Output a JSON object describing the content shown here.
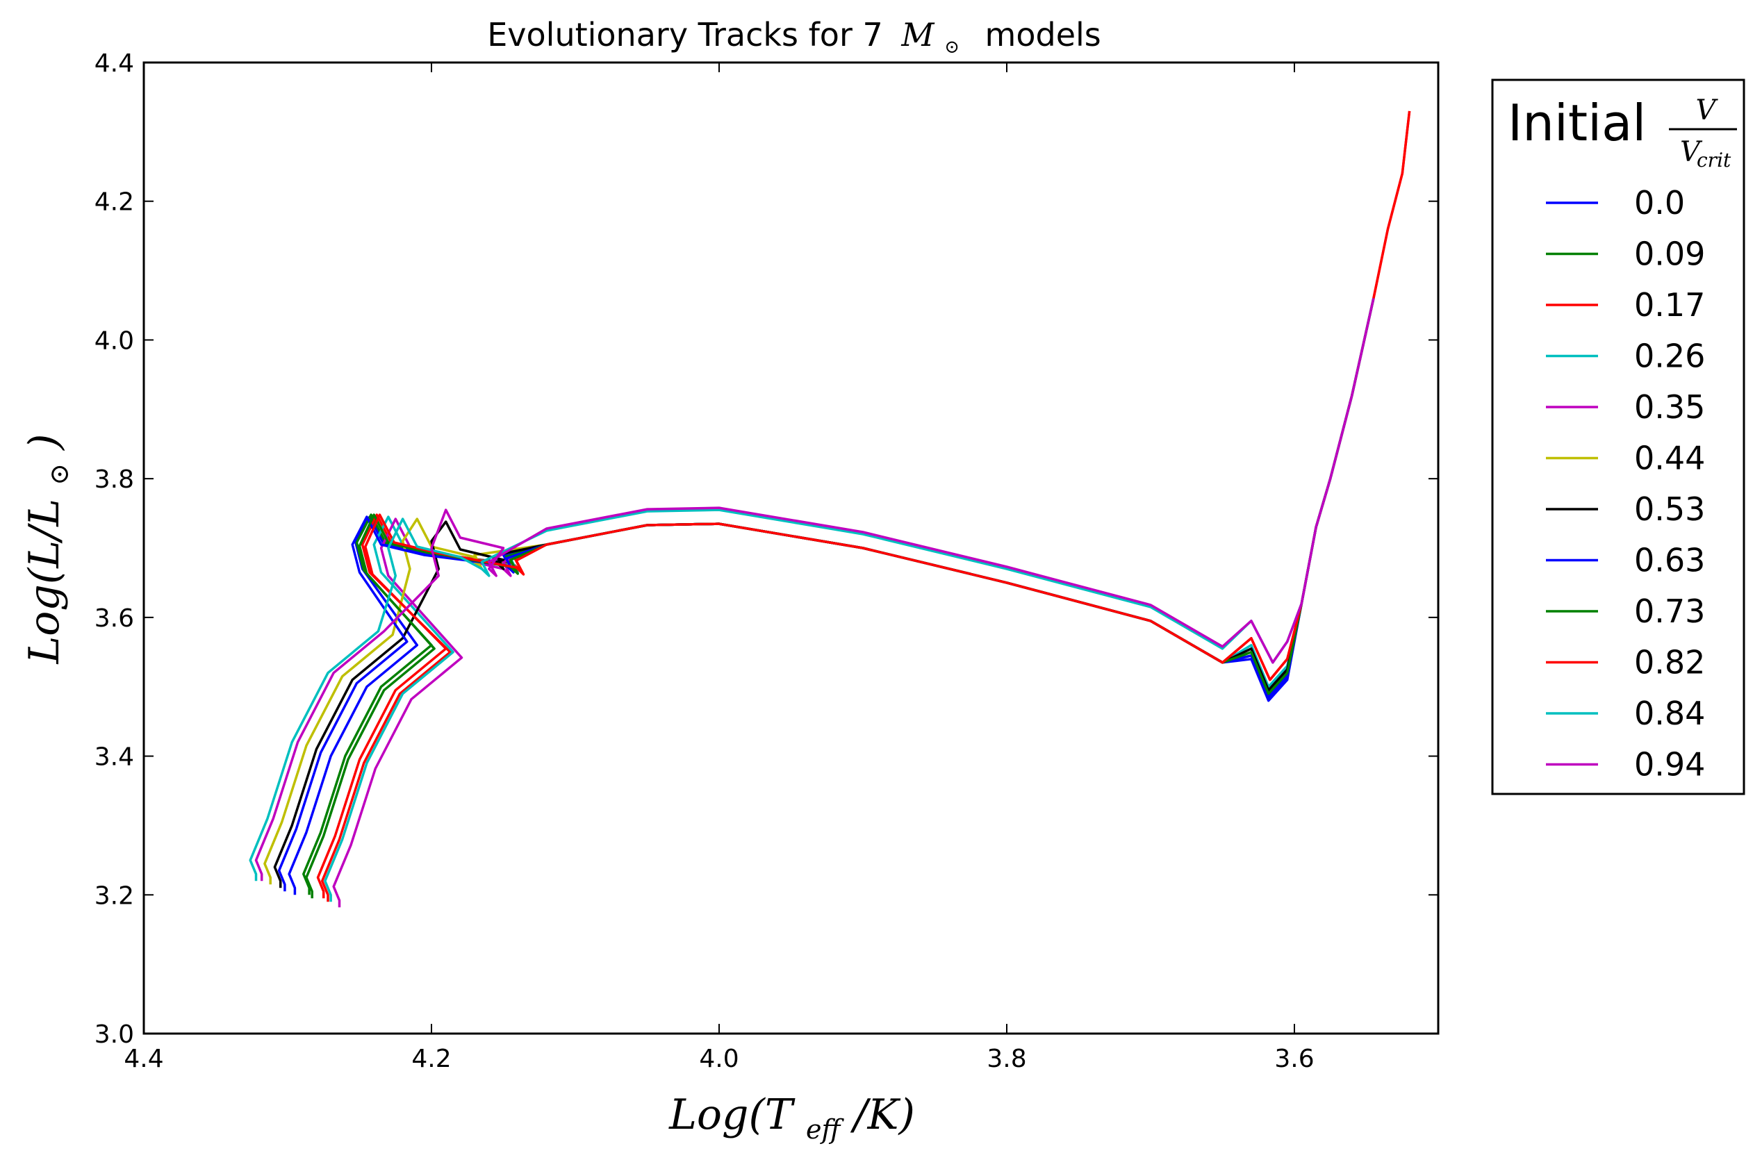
{
  "chart_data": {
    "type": "line",
    "title_prefix": "Evolutionary Tracks for 7",
    "title_symbol": "M",
    "title_symbol_sub": "⊙",
    "title_suffix": "models",
    "xlabel": "Log(T",
    "xlabel_sub": "eff",
    "xlabel_end": "/K)",
    "ylabel": "Log(L/L",
    "ylabel_sub": "⊙",
    "ylabel_end": ")",
    "xlim": [
      4.4,
      3.5
    ],
    "ylim": [
      3.0,
      4.4
    ],
    "x_inverted": true,
    "xticks": [
      4.4,
      4.2,
      4.0,
      3.8,
      3.6
    ],
    "xtick_labels": [
      "4.4",
      "4.2",
      "4.0",
      "3.8",
      "3.6"
    ],
    "yticks": [
      3.0,
      3.2,
      3.4,
      3.6,
      3.8,
      4.0,
      4.2,
      4.4
    ],
    "ytick_labels": [
      "3.0",
      "3.2",
      "3.4",
      "3.6",
      "3.8",
      "4.0",
      "4.2",
      "4.4"
    ],
    "grid": false,
    "legend_position": "outside-right",
    "legend_title_text": "Initial",
    "legend_title_num": "V",
    "legend_title_den": "V",
    "legend_title_den_sub": "crit",
    "series": [
      {
        "name": "0.0",
        "color": "#0000ff",
        "zams": [
          4.295,
          3.2
        ],
        "x_blue": 4.243,
        "y_blue": 3.745,
        "y_hook": 3.67,
        "x_hook": 4.145,
        "y_max": 3.735,
        "x_rgb": 3.618,
        "y_rgb": 3.48
      },
      {
        "name": "0.09",
        "color": "#008000",
        "zams": [
          4.283,
          3.195
        ],
        "x_blue": 4.242,
        "y_blue": 3.748,
        "y_hook": 3.668,
        "x_hook": 4.143,
        "y_max": 3.735,
        "x_rgb": 3.618,
        "y_rgb": 3.485
      },
      {
        "name": "0.17",
        "color": "#ff0000",
        "zams": [
          4.272,
          3.19
        ],
        "x_blue": 4.238,
        "y_blue": 3.748,
        "y_hook": 3.665,
        "x_hook": 4.137,
        "y_max": 3.735,
        "x_rgb": 3.617,
        "y_rgb": 3.51
      },
      {
        "name": "0.26",
        "color": "#00bfbf",
        "zams": [
          4.27,
          3.19
        ],
        "x_blue": 4.23,
        "y_blue": 3.745,
        "y_hook": 3.665,
        "x_hook": 4.14,
        "y_max": 3.735,
        "x_rgb": 3.618,
        "y_rgb": 3.5
      },
      {
        "name": "0.35",
        "color": "#bf00bf",
        "zams": [
          4.264,
          3.182
        ],
        "x_blue": 4.225,
        "y_blue": 3.742,
        "y_hook": 3.66,
        "x_hook": 4.145,
        "y_max": 3.735,
        "x_rgb": 3.618,
        "y_rgb": 3.495
      },
      {
        "name": "0.44",
        "color": "#bfbf00",
        "zams": [
          4.312,
          3.215
        ],
        "x_blue": 4.21,
        "y_blue": 3.742,
        "y_hook": 3.67,
        "x_hook": 4.165,
        "y_max": 3.735,
        "x_rgb": 3.618,
        "y_rgb": 3.49
      },
      {
        "name": "0.53",
        "color": "#000000",
        "zams": [
          4.305,
          3.21
        ],
        "x_blue": 4.19,
        "y_blue": 3.738,
        "y_hook": 3.67,
        "x_hook": 4.15,
        "y_max": 3.735,
        "x_rgb": 3.618,
        "y_rgb": 3.495
      },
      {
        "name": "0.63",
        "color": "#0000ff",
        "zams": [
          4.302,
          3.205
        ],
        "x_blue": 4.245,
        "y_blue": 3.745,
        "y_hook": 3.665,
        "x_hook": 4.143,
        "y_max": 3.735,
        "x_rgb": 3.618,
        "y_rgb": 3.485
      },
      {
        "name": "0.73",
        "color": "#008000",
        "zams": [
          4.285,
          3.2
        ],
        "x_blue": 4.24,
        "y_blue": 3.748,
        "y_hook": 3.663,
        "x_hook": 4.14,
        "y_max": 3.735,
        "x_rgb": 3.618,
        "y_rgb": 3.49
      },
      {
        "name": "0.82",
        "color": "#ff0000",
        "zams": [
          4.275,
          3.195
        ],
        "x_blue": 4.236,
        "y_blue": 3.748,
        "y_hook": 3.662,
        "x_hook": 4.136,
        "y_max": 3.735,
        "x_rgb": 3.617,
        "y_rgb": 3.51
      },
      {
        "name": "0.84",
        "color": "#00bfbf",
        "zams": [
          4.322,
          3.22
        ],
        "x_blue": 4.22,
        "y_blue": 3.742,
        "y_hook": 3.66,
        "x_hook": 4.16,
        "y_max": 3.755,
        "x_rgb": 3.615,
        "y_rgb": 3.535
      },
      {
        "name": "0.94",
        "color": "#bf00bf",
        "zams": [
          4.318,
          3.22
        ],
        "x_blue": 4.19,
        "y_blue": 3.755,
        "y_hook": 3.66,
        "x_hook": 4.155,
        "y_max": 3.758,
        "x_rgb": 3.615,
        "y_rgb": 3.535
      }
    ]
  }
}
